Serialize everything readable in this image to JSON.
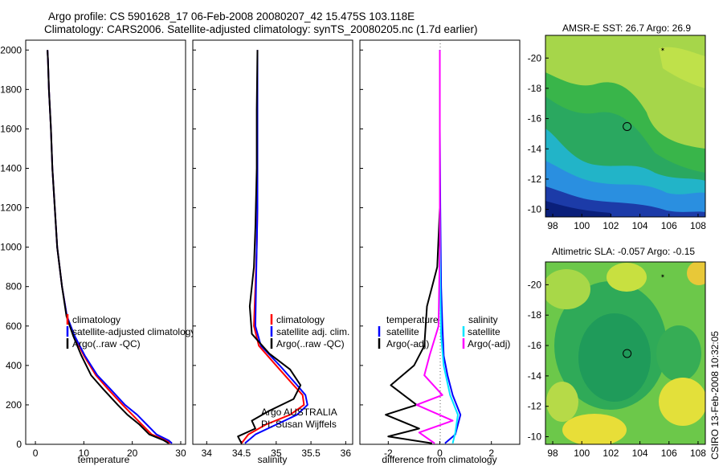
{
  "header": {
    "line1": "Argo profile: CS 5901628_17 06-Feb-2008 20080207_42 15.475S 103.118E",
    "line2": "Climatology: CARS2006. Satellite-adjusted climatology: synTS_20080205.nc (1.7d earlier)"
  },
  "side_stamp": "CSIRO 13-Feb-2008 10:32:05",
  "colors": {
    "climatology": "#ff0000",
    "satellite": "#0000ff",
    "argo": "#000000",
    "sal_satellite": "#00e5ff",
    "sal_argo": "#ff00ff",
    "zero_line": "#555555"
  },
  "chart_data": [
    {
      "type": "line",
      "id": "temperature",
      "xlabel": "temperature",
      "xlim": [
        -2,
        31
      ],
      "ylim": [
        2050,
        0
      ],
      "xticks": [
        0,
        10,
        20,
        30
      ],
      "yticks": [
        0,
        200,
        400,
        600,
        800,
        1000,
        1200,
        1400,
        1600,
        1800,
        2000
      ],
      "series": [
        {
          "name": "climatology",
          "color": "#ff0000",
          "x": [
            27.8,
            27.0,
            24.0,
            22.0,
            20.0,
            18.0,
            15.0,
            12.5,
            10.0,
            8.0,
            6.5,
            5.5,
            4.5,
            4.0,
            3.5,
            3.2,
            2.8,
            2.6,
            2.5
          ],
          "y": [
            5,
            20,
            50,
            100,
            150,
            200,
            280,
            350,
            450,
            550,
            650,
            800,
            1000,
            1200,
            1400,
            1600,
            1800,
            1950,
            2000
          ]
        },
        {
          "name": "satellite-adjusted climatology",
          "color": "#0000ff",
          "x": [
            28.2,
            27.5,
            25.0,
            23.0,
            21.0,
            18.5,
            15.5,
            12.8,
            10.2,
            8.1,
            6.5,
            5.5,
            4.5,
            4.0,
            3.5,
            3.2,
            2.8,
            2.6,
            2.5
          ],
          "y": [
            5,
            20,
            50,
            100,
            150,
            200,
            280,
            350,
            450,
            550,
            650,
            800,
            1000,
            1200,
            1400,
            1600,
            1800,
            1950,
            2000
          ]
        },
        {
          "name": "Argo(..raw -QC)",
          "color": "#000000",
          "x": [
            27.5,
            26.5,
            23.5,
            21.5,
            19.0,
            17.0,
            14.0,
            11.5,
            9.5,
            7.8,
            6.4,
            5.5,
            4.5,
            4.0,
            3.5,
            3.2,
            2.8,
            2.6,
            2.5
          ],
          "y": [
            5,
            20,
            50,
            100,
            150,
            200,
            280,
            350,
            450,
            550,
            650,
            800,
            1000,
            1200,
            1400,
            1600,
            1800,
            1950,
            2000
          ]
        }
      ],
      "legend": {
        "placement": "lower-right",
        "entries": [
          "climatology",
          "satellite-adjusted climatology",
          "Argo(..raw -QC)"
        ]
      }
    },
    {
      "type": "line",
      "id": "salinity",
      "xlabel": "salinity",
      "xlim": [
        33.8,
        36.1
      ],
      "ylim": [
        2050,
        0
      ],
      "xticks": [
        34,
        34.5,
        35,
        35.5,
        36
      ],
      "series": [
        {
          "name": "climatology",
          "color": "#ff0000",
          "x": [
            34.5,
            34.6,
            34.85,
            35.2,
            35.4,
            35.38,
            35.25,
            35.0,
            34.75,
            34.68,
            34.7,
            34.72,
            34.73,
            34.73,
            34.73,
            34.73
          ],
          "y": [
            5,
            50,
            100,
            150,
            200,
            250,
            300,
            400,
            500,
            600,
            800,
            1000,
            1200,
            1500,
            1800,
            2000
          ]
        },
        {
          "name": "satellite adj. clim.",
          "color": "#0000ff",
          "x": [
            34.55,
            34.7,
            35.0,
            35.3,
            35.45,
            35.42,
            35.3,
            35.05,
            34.78,
            34.7,
            34.71,
            34.72,
            34.73,
            34.73,
            34.73,
            34.73
          ],
          "y": [
            5,
            50,
            100,
            150,
            200,
            250,
            300,
            400,
            500,
            600,
            800,
            1000,
            1200,
            1500,
            1800,
            2000
          ]
        },
        {
          "name": "Argo(..raw -QC)",
          "color": "#000000",
          "x": [
            34.5,
            34.45,
            34.7,
            34.65,
            34.9,
            35.25,
            35.35,
            35.2,
            34.9,
            34.65,
            34.62,
            34.68,
            34.7,
            34.72,
            34.72,
            34.73
          ],
          "y": [
            5,
            40,
            80,
            120,
            170,
            230,
            300,
            380,
            460,
            560,
            700,
            900,
            1100,
            1400,
            1700,
            2000
          ]
        }
      ],
      "legend": {
        "placement": "lower-right",
        "entries": [
          "climatology",
          "satellite adj. clim.",
          "Argo(..raw -QC)"
        ]
      },
      "annotation": [
        "Argo AUSTRALIA",
        "PI: Susan Wijffels"
      ]
    },
    {
      "type": "line",
      "id": "difference",
      "xlabel": "difference from climatology",
      "xlim": [
        -3.1,
        3.1
      ],
      "ylim": [
        2050,
        0
      ],
      "xticks": [
        -2,
        0,
        2
      ],
      "series": [
        {
          "name": "temperature satellite",
          "color": "#0000ff",
          "x": [
            0.2,
            0.6,
            0.8,
            0.5,
            0.3,
            0.15,
            0.1,
            0.05,
            0.02,
            0.0,
            0.0
          ],
          "y": [
            5,
            50,
            150,
            250,
            350,
            450,
            600,
            800,
            1200,
            1600,
            2000
          ]
        },
        {
          "name": "temperature Argo(-adj)",
          "color": "#000000",
          "x": [
            -0.3,
            -2.0,
            -0.8,
            -2.1,
            -0.9,
            -1.9,
            -1.0,
            -0.6,
            -0.5,
            -0.1,
            0.0,
            0.0
          ],
          "y": [
            5,
            40,
            80,
            150,
            200,
            300,
            400,
            500,
            700,
            900,
            1200,
            2000
          ]
        },
        {
          "name": "salinity satellite",
          "color": "#00e5ff",
          "x": [
            0.5,
            0.6,
            0.7,
            0.4,
            0.15,
            0.05,
            0.02,
            0.0,
            0.0
          ],
          "y": [
            5,
            60,
            150,
            250,
            400,
            550,
            800,
            1200,
            2000
          ]
        },
        {
          "name": "salinity Argo(-adj)",
          "color": "#ff00ff",
          "x": [
            -0.2,
            -0.8,
            0.5,
            -0.9,
            0.1,
            -0.6,
            -0.4,
            -0.05,
            0.0,
            0.0
          ],
          "y": [
            5,
            60,
            120,
            200,
            250,
            350,
            450,
            600,
            1000,
            2000
          ]
        }
      ],
      "legend": {
        "placement": "lower-center",
        "headers": [
          "temperature",
          "salinity"
        ],
        "entries": [
          "satellite",
          "Argo(-adj)",
          "satellite",
          "Argo(-adj)"
        ]
      }
    },
    {
      "type": "heatmap",
      "id": "sst-map",
      "title": "AMSR-E SST: 26.7  Argo: 26.9",
      "xlim": [
        97.5,
        108.5
      ],
      "ylim": [
        -21.5,
        -9.5
      ],
      "xticks": [
        98,
        100,
        102,
        104,
        106,
        108
      ],
      "yticks": [
        -10,
        -12,
        -14,
        -16,
        -18,
        -20
      ],
      "marker": {
        "lon": 103.118,
        "lat": -15.475
      }
    },
    {
      "type": "heatmap",
      "id": "sla-map",
      "title": "Altimetric SLA: -0.057  Argo: -0.15",
      "xlim": [
        97.5,
        108.5
      ],
      "ylim": [
        -21.5,
        -9.5
      ],
      "xticks": [
        98,
        100,
        102,
        104,
        106,
        108
      ],
      "yticks": [
        -10,
        -12,
        -14,
        -16,
        -18,
        -20
      ],
      "marker": {
        "lon": 103.118,
        "lat": -15.475
      }
    }
  ]
}
